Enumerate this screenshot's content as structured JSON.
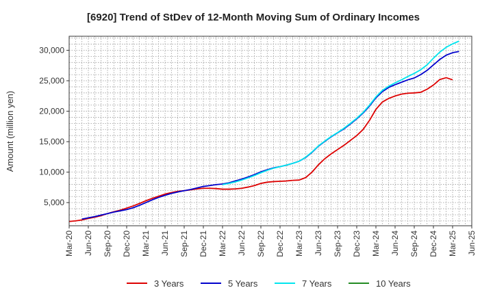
{
  "chart_data": {
    "type": "line",
    "title": "[6920]  Trend of StDev of 12-Month Moving Sum of Ordinary Incomes",
    "ylabel": "Amount (million yen)",
    "xlabel": "",
    "x_ticks": [
      "Mar-20",
      "Jun-20",
      "Sep-20",
      "Dec-20",
      "Mar-21",
      "Jun-21",
      "Sep-21",
      "Dec-21",
      "Mar-22",
      "Jun-22",
      "Sep-22",
      "Dec-22",
      "Mar-23",
      "Jun-23",
      "Sep-23",
      "Dec-23",
      "Mar-24",
      "Jun-24",
      "Sep-24",
      "Dec-24",
      "Mar-25",
      "Jun-25"
    ],
    "y_ticks": [
      5000,
      10000,
      15000,
      20000,
      25000,
      30000
    ],
    "y_tick_labels": [
      "5,000",
      "10,000",
      "15,000",
      "20,000",
      "25,000",
      "30,000"
    ],
    "ylim": [
      1200,
      32300
    ],
    "x_range": [
      "Mar-20",
      "Jun-25"
    ],
    "grid": true,
    "legend_position": "bottom",
    "series": [
      {
        "name": "3 Years",
        "color": "#dd0000",
        "points": [
          [
            "Mar-20",
            1900
          ],
          [
            "Apr-20",
            2000
          ],
          [
            "May-20",
            2150
          ],
          [
            "Jun-20",
            2400
          ],
          [
            "Jul-20",
            2600
          ],
          [
            "Aug-20",
            2850
          ],
          [
            "Sep-20",
            3200
          ],
          [
            "Oct-20",
            3500
          ],
          [
            "Nov-20",
            3750
          ],
          [
            "Dec-20",
            4100
          ],
          [
            "Jan-21",
            4450
          ],
          [
            "Feb-21",
            4850
          ],
          [
            "Mar-21",
            5300
          ],
          [
            "Apr-21",
            5700
          ],
          [
            "May-21",
            6050
          ],
          [
            "Jun-21",
            6400
          ],
          [
            "Jul-21",
            6650
          ],
          [
            "Aug-21",
            6850
          ],
          [
            "Sep-21",
            6950
          ],
          [
            "Oct-21",
            7100
          ],
          [
            "Nov-21",
            7250
          ],
          [
            "Dec-21",
            7350
          ],
          [
            "Jan-22",
            7350
          ],
          [
            "Feb-22",
            7300
          ],
          [
            "Mar-22",
            7200
          ],
          [
            "Apr-22",
            7200
          ],
          [
            "May-22",
            7250
          ],
          [
            "Jun-22",
            7350
          ],
          [
            "Jul-22",
            7550
          ],
          [
            "Aug-22",
            7800
          ],
          [
            "Sep-22",
            8150
          ],
          [
            "Oct-22",
            8350
          ],
          [
            "Nov-22",
            8450
          ],
          [
            "Dec-22",
            8500
          ],
          [
            "Jan-23",
            8550
          ],
          [
            "Feb-23",
            8650
          ],
          [
            "Mar-23",
            8700
          ],
          [
            "Apr-23",
            9100
          ],
          [
            "May-23",
            10000
          ],
          [
            "Jun-23",
            11200
          ],
          [
            "Jul-23",
            12200
          ],
          [
            "Aug-23",
            13000
          ],
          [
            "Sep-23",
            13700
          ],
          [
            "Oct-23",
            14400
          ],
          [
            "Nov-23",
            15200
          ],
          [
            "Dec-23",
            16000
          ],
          [
            "Jan-24",
            17000
          ],
          [
            "Feb-24",
            18500
          ],
          [
            "Mar-24",
            20300
          ],
          [
            "Apr-24",
            21500
          ],
          [
            "May-24",
            22100
          ],
          [
            "Jun-24",
            22500
          ],
          [
            "Jul-24",
            22800
          ],
          [
            "Aug-24",
            22950
          ],
          [
            "Sep-24",
            23000
          ],
          [
            "Oct-24",
            23100
          ],
          [
            "Nov-24",
            23600
          ],
          [
            "Dec-24",
            24300
          ],
          [
            "Jan-25",
            25200
          ],
          [
            "Feb-25",
            25500
          ],
          [
            "Mar-25",
            25150
          ]
        ]
      },
      {
        "name": "5 Years",
        "color": "#0000cc",
        "points": [
          [
            "May-20",
            2300
          ],
          [
            "Jun-20",
            2500
          ],
          [
            "Jul-20",
            2700
          ],
          [
            "Aug-20",
            2950
          ],
          [
            "Sep-20",
            3200
          ],
          [
            "Oct-20",
            3450
          ],
          [
            "Nov-20",
            3650
          ],
          [
            "Dec-20",
            3850
          ],
          [
            "Jan-21",
            4150
          ],
          [
            "Feb-21",
            4550
          ],
          [
            "Mar-21",
            5000
          ],
          [
            "Apr-21",
            5450
          ],
          [
            "May-21",
            5850
          ],
          [
            "Jun-21",
            6200
          ],
          [
            "Jul-21",
            6500
          ],
          [
            "Aug-21",
            6750
          ],
          [
            "Sep-21",
            6950
          ],
          [
            "Oct-21",
            7150
          ],
          [
            "Nov-21",
            7400
          ],
          [
            "Dec-21",
            7650
          ],
          [
            "Jan-22",
            7800
          ],
          [
            "Feb-22",
            7950
          ],
          [
            "Mar-22",
            8050
          ],
          [
            "Apr-22",
            8250
          ],
          [
            "May-22",
            8550
          ],
          [
            "Jun-22",
            8850
          ],
          [
            "Jul-22",
            9200
          ],
          [
            "Aug-22",
            9600
          ],
          [
            "Sep-22",
            10050
          ],
          [
            "Oct-22",
            10400
          ],
          [
            "Nov-22",
            10700
          ],
          [
            "Dec-22",
            10900
          ],
          [
            "Jan-23",
            11150
          ],
          [
            "Feb-23",
            11450
          ],
          [
            "Mar-23",
            11800
          ],
          [
            "Apr-23",
            12400
          ],
          [
            "May-23",
            13250
          ],
          [
            "Jun-23",
            14250
          ],
          [
            "Jul-23",
            15050
          ],
          [
            "Aug-23",
            15800
          ],
          [
            "Sep-23",
            16450
          ],
          [
            "Oct-23",
            17100
          ],
          [
            "Nov-23",
            17900
          ],
          [
            "Dec-23",
            18750
          ],
          [
            "Jan-24",
            19700
          ],
          [
            "Feb-24",
            20850
          ],
          [
            "Mar-24",
            22200
          ],
          [
            "Apr-24",
            23200
          ],
          [
            "May-24",
            23900
          ],
          [
            "Jun-24",
            24350
          ],
          [
            "Jul-24",
            24750
          ],
          [
            "Aug-24",
            25150
          ],
          [
            "Sep-24",
            25450
          ],
          [
            "Oct-24",
            26000
          ],
          [
            "Nov-24",
            26700
          ],
          [
            "Dec-24",
            27600
          ],
          [
            "Jan-25",
            28500
          ],
          [
            "Feb-25",
            29200
          ],
          [
            "Mar-25",
            29600
          ],
          [
            "Apr-25",
            29800
          ]
        ]
      },
      {
        "name": "7 Years",
        "color": "#00e5ee",
        "points": [
          [
            "Mar-22",
            7950
          ],
          [
            "Apr-22",
            8150
          ],
          [
            "May-22",
            8400
          ],
          [
            "Jun-22",
            8700
          ],
          [
            "Jul-22",
            9050
          ],
          [
            "Aug-22",
            9450
          ],
          [
            "Sep-22",
            9900
          ],
          [
            "Oct-22",
            10300
          ],
          [
            "Nov-22",
            10650
          ],
          [
            "Dec-22",
            10900
          ],
          [
            "Jan-23",
            11150
          ],
          [
            "Feb-23",
            11450
          ],
          [
            "Mar-23",
            11800
          ],
          [
            "Apr-23",
            12450
          ],
          [
            "May-23",
            13300
          ],
          [
            "Jun-23",
            14300
          ],
          [
            "Jul-23",
            15100
          ],
          [
            "Aug-23",
            15850
          ],
          [
            "Sep-23",
            16500
          ],
          [
            "Oct-23",
            17200
          ],
          [
            "Nov-23",
            18000
          ],
          [
            "Dec-23",
            18850
          ],
          [
            "Jan-24",
            19800
          ],
          [
            "Feb-24",
            21000
          ],
          [
            "Mar-24",
            22350
          ],
          [
            "Apr-24",
            23400
          ],
          [
            "May-24",
            24100
          ],
          [
            "Jun-24",
            24650
          ],
          [
            "Jul-24",
            25150
          ],
          [
            "Aug-24",
            25700
          ],
          [
            "Sep-24",
            26200
          ],
          [
            "Oct-24",
            26800
          ],
          [
            "Nov-24",
            27600
          ],
          [
            "Dec-24",
            28700
          ],
          [
            "Jan-25",
            29700
          ],
          [
            "Feb-25",
            30500
          ],
          [
            "Mar-25",
            31050
          ],
          [
            "Apr-25",
            31500
          ]
        ]
      },
      {
        "name": "10 Years",
        "color": "#228b22",
        "points": []
      }
    ]
  }
}
